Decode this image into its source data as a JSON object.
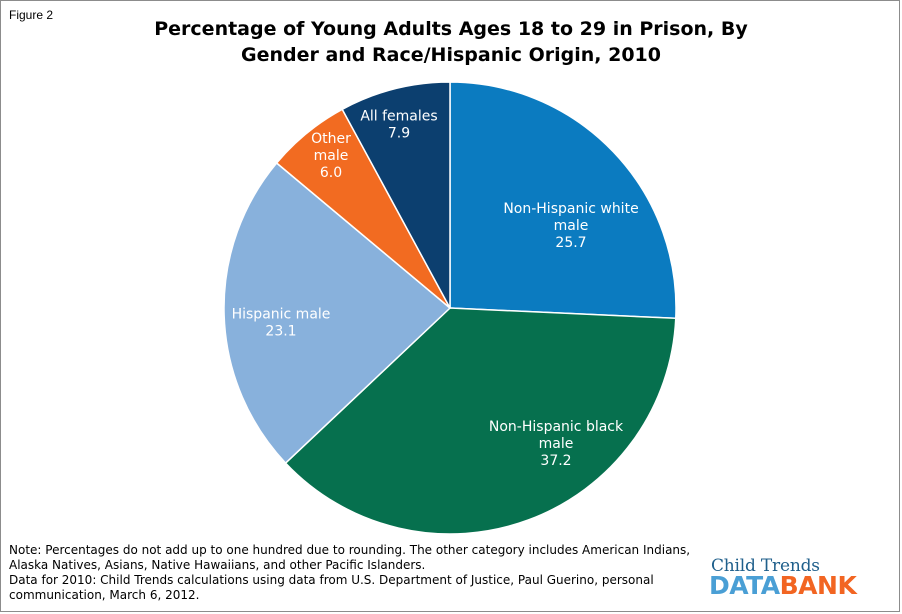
{
  "figure_label": "Figure 2",
  "chart_data": {
    "type": "pie",
    "title": "Percentage of Young Adults Ages 18 to 29 in Prison, By Gender and Race/Hispanic Origin, 2010",
    "title_lines": [
      "Percentage of Young Adults Ages 18 to 29 in Prison, By",
      "Gender and Race/Hispanic Origin, 2010"
    ],
    "slices": [
      {
        "label": "Non-Hispanic white male",
        "label_lines": [
          "Non-Hispanic white",
          "male"
        ],
        "value": 25.7,
        "value_text": "25.7",
        "color": "#0b7bc0"
      },
      {
        "label": "Non-Hispanic black male",
        "label_lines": [
          "Non-Hispanic black",
          "male"
        ],
        "value": 37.2,
        "value_text": "37.2",
        "color": "#06704e"
      },
      {
        "label": "Hispanic male",
        "label_lines": [
          "Hispanic male"
        ],
        "value": 23.1,
        "value_text": "23.1",
        "color": "#88b1dc"
      },
      {
        "label": "Other male",
        "label_lines": [
          "Other",
          "male"
        ],
        "value": 6.0,
        "value_text": "6.0",
        "color": "#f26b21"
      },
      {
        "label": "All females",
        "label_lines": [
          "All females"
        ],
        "value": 7.9,
        "value_text": "7.9",
        "color": "#0c3f6f"
      }
    ],
    "start_angle": "12 o'clock",
    "direction": "clockwise",
    "legend": "none",
    "border_color": "#ffffff"
  },
  "note": {
    "line1": "Note: Percentages do not add up to one hundred due to rounding.  The other category includes American Indians, Alaska Natives, Asians, Native Hawaiians, and other Pacific Islanders.",
    "line2": "Data for 2010: Child Trends calculations using data from U.S. Department of Justice, Paul Guerino, personal communication, March 6, 2012."
  },
  "logo": {
    "line1": "Child Trends",
    "data_word": "DATA",
    "bank_word": "BANK"
  }
}
